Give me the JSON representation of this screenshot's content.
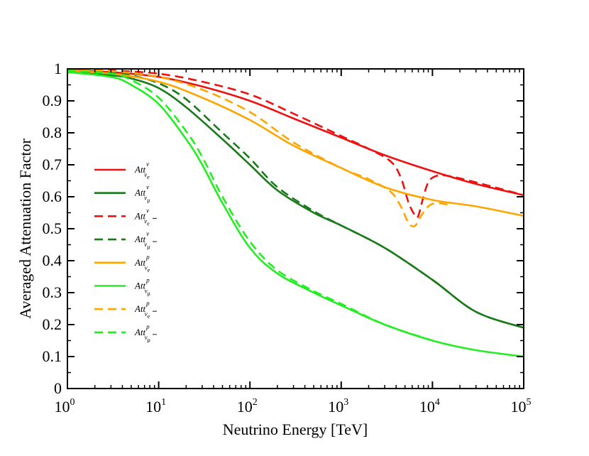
{
  "chart_data": {
    "type": "line",
    "title": "",
    "xlabel": "Neutrino Energy [TeV]",
    "ylabel": "Averaged Attenuation Factor",
    "xscale": "log",
    "xlim": [
      1,
      100000
    ],
    "ylim": [
      0,
      1
    ],
    "xticks": [
      {
        "base": "10",
        "exp": "0"
      },
      {
        "base": "10",
        "exp": "1"
      },
      {
        "base": "10",
        "exp": "2"
      },
      {
        "base": "10",
        "exp": "3"
      },
      {
        "base": "10",
        "exp": "4"
      },
      {
        "base": "10",
        "exp": "5"
      }
    ],
    "yticks": [
      "0",
      "0.1",
      "0.2",
      "0.3",
      "0.4",
      "0.5",
      "0.6",
      "0.7",
      "0.8",
      "0.9",
      "1"
    ],
    "legend_position": "center-left",
    "legend_base": "Att",
    "colors": {
      "red": "#ee1111",
      "darkgreen": "#1a7a1a",
      "orange": "#ffa500",
      "lime": "#22ee22"
    },
    "series": [
      {
        "name": "Att^ν_νe",
        "sup": "ν",
        "sub": "ν",
        "subsub": "e",
        "bar": false,
        "color": "#ee1111",
        "dash": false,
        "x": [
          1,
          3,
          10,
          30,
          100,
          300,
          1000,
          3000,
          10000,
          30000,
          100000
        ],
        "y": [
          0.995,
          0.99,
          0.975,
          0.945,
          0.9,
          0.845,
          0.785,
          0.73,
          0.68,
          0.64,
          0.605
        ]
      },
      {
        "name": "Att^ν_νμ",
        "sup": "ν",
        "sub": "ν",
        "subsub": "μ",
        "bar": false,
        "color": "#1a7a1a",
        "dash": false,
        "x": [
          1,
          3,
          5,
          10,
          20,
          50,
          100,
          200,
          500,
          1000,
          3000,
          10000,
          30000,
          100000
        ],
        "y": [
          0.99,
          0.98,
          0.97,
          0.94,
          0.88,
          0.78,
          0.7,
          0.62,
          0.55,
          0.51,
          0.44,
          0.34,
          0.24,
          0.19
        ]
      },
      {
        "name": "Att^ν_ν̄e",
        "sup": "ν",
        "sub": "ν",
        "subsub": "e",
        "bar": true,
        "color": "#ee1111",
        "dash": true,
        "x": [
          1,
          3,
          10,
          30,
          100,
          300,
          1000,
          2000,
          3500,
          4500,
          5500,
          6500,
          7000,
          7800,
          9000,
          11000,
          15000,
          30000,
          100000
        ],
        "y": [
          0.998,
          0.995,
          0.985,
          0.96,
          0.92,
          0.86,
          0.79,
          0.75,
          0.71,
          0.66,
          0.58,
          0.54,
          0.54,
          0.59,
          0.645,
          0.665,
          0.665,
          0.645,
          0.605
        ]
      },
      {
        "name": "Att^ν_ν̄μ",
        "sup": "ν",
        "sub": "ν",
        "subsub": "μ",
        "bar": true,
        "color": "#1a7a1a",
        "dash": true,
        "x": [
          1,
          3,
          5,
          10,
          20,
          50,
          100,
          200,
          500,
          1000,
          3000,
          10000,
          30000,
          100000
        ],
        "y": [
          0.995,
          0.99,
          0.98,
          0.955,
          0.905,
          0.8,
          0.72,
          0.63,
          0.555,
          0.51,
          0.44,
          0.34,
          0.24,
          0.19
        ]
      },
      {
        "name": "Att^p_νe",
        "sup": "p",
        "sub": "ν",
        "subsub": "e",
        "bar": false,
        "color": "#ffa500",
        "dash": false,
        "x": [
          1,
          3,
          10,
          30,
          100,
          300,
          1000,
          3000,
          10000,
          30000,
          100000
        ],
        "y": [
          0.995,
          0.985,
          0.96,
          0.91,
          0.84,
          0.76,
          0.69,
          0.63,
          0.59,
          0.57,
          0.54
        ]
      },
      {
        "name": "Att^p_νμ",
        "sup": "p",
        "sub": "ν",
        "subsub": "μ",
        "bar": false,
        "color": "#22ee22",
        "dash": false,
        "x": [
          1,
          3,
          5,
          10,
          20,
          30,
          50,
          100,
          200,
          500,
          1000,
          3000,
          10000,
          30000,
          100000
        ],
        "y": [
          0.99,
          0.975,
          0.95,
          0.89,
          0.78,
          0.7,
          0.58,
          0.44,
          0.36,
          0.3,
          0.26,
          0.2,
          0.15,
          0.12,
          0.1
        ]
      },
      {
        "name": "Att^p_ν̄e",
        "sup": "p",
        "sub": "ν",
        "subsub": "e",
        "bar": true,
        "color": "#ffa500",
        "dash": true,
        "x": [
          1,
          3,
          10,
          30,
          100,
          300,
          1000,
          2000,
          3500,
          4500,
          5200,
          5800,
          6500,
          7500,
          9000,
          11000,
          15000
        ],
        "y": [
          0.998,
          0.993,
          0.975,
          0.935,
          0.865,
          0.77,
          0.69,
          0.655,
          0.615,
          0.57,
          0.53,
          0.51,
          0.51,
          0.54,
          0.57,
          0.58,
          0.575
        ]
      },
      {
        "name": "Att^p_ν̄μ",
        "sup": "p",
        "sub": "ν",
        "subsub": "μ",
        "bar": true,
        "color": "#22ee22",
        "dash": true,
        "x": [
          1,
          3,
          5,
          10,
          20,
          30,
          50,
          100,
          200,
          500,
          1000,
          3000,
          10000
        ],
        "y": [
          0.995,
          0.985,
          0.965,
          0.91,
          0.805,
          0.725,
          0.6,
          0.46,
          0.37,
          0.305,
          0.265,
          0.2,
          0.15
        ]
      }
    ]
  }
}
